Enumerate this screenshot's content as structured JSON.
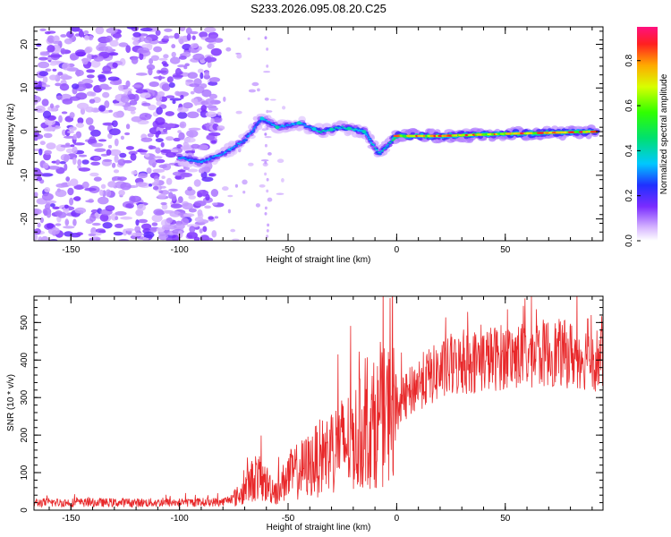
{
  "title": "S233.2026.095.08.20.C25",
  "colors": {
    "snr_line": "#e8282a",
    "axis": "#000000",
    "background": "#ffffff"
  },
  "chart_data": [
    {
      "type": "heatmap",
      "name": "spectrogram",
      "xlabel": "Height of straight line (km)",
      "ylabel": "Frequency (Hz)",
      "xlim": [
        -167,
        95
      ],
      "ylim": [
        -25,
        24
      ],
      "xticks": [
        -150,
        -100,
        -50,
        0,
        50
      ],
      "yticks": [
        -20,
        -10,
        0,
        10,
        20
      ],
      "ridge": {
        "description_points": [
          {
            "x": -100,
            "y": -6
          },
          {
            "x": -90,
            "y": -7
          },
          {
            "x": -80,
            "y": -5
          },
          {
            "x": -70,
            "y": -2
          },
          {
            "x": -62,
            "y": 3
          },
          {
            "x": -55,
            "y": 1
          },
          {
            "x": -45,
            "y": 2
          },
          {
            "x": -35,
            "y": 0
          },
          {
            "x": -25,
            "y": 1
          },
          {
            "x": -15,
            "y": 0
          },
          {
            "x": -8,
            "y": -5
          },
          {
            "x": 0,
            "y": -1
          },
          {
            "x": 20,
            "y": -1
          },
          {
            "x": 50,
            "y": -0.5
          },
          {
            "x": 92,
            "y": 0
          }
        ]
      },
      "noise_region_x": [
        -167,
        -82
      ],
      "colorbar": {
        "label": "Normalized spectral amplitude",
        "range": [
          0.0,
          0.95
        ],
        "ticks": [
          "0.0",
          "0.2",
          "0.4",
          "0.6",
          "0.8"
        ]
      }
    },
    {
      "type": "line",
      "name": "snr",
      "xlabel": "Height of straight line (km)",
      "ylabel": "SNR (10 * v/v)",
      "xlim": [
        -167,
        95
      ],
      "ylim": [
        0,
        570
      ],
      "xticks": [
        -150,
        -100,
        -50,
        0,
        50
      ],
      "yticks": [
        0,
        100,
        200,
        300,
        400,
        500
      ],
      "trend": {
        "x": [
          -167,
          -150,
          -100,
          -80,
          -72,
          -65,
          -60,
          -55,
          -50,
          -40,
          -30,
          -20,
          -10,
          0,
          10,
          20,
          30,
          40,
          50,
          60,
          70,
          80,
          95
        ],
        "y": [
          20,
          20,
          20,
          22,
          40,
          90,
          70,
          50,
          90,
          120,
          160,
          190,
          230,
          270,
          340,
          370,
          390,
          400,
          410,
          410,
          420,
          415,
          400
        ]
      },
      "spikes": [
        {
          "x": -27,
          "y": 415
        },
        {
          "x": -3,
          "y": 565
        },
        {
          "x": 62,
          "y": 570
        },
        {
          "x": 88,
          "y": 510
        }
      ]
    }
  ]
}
